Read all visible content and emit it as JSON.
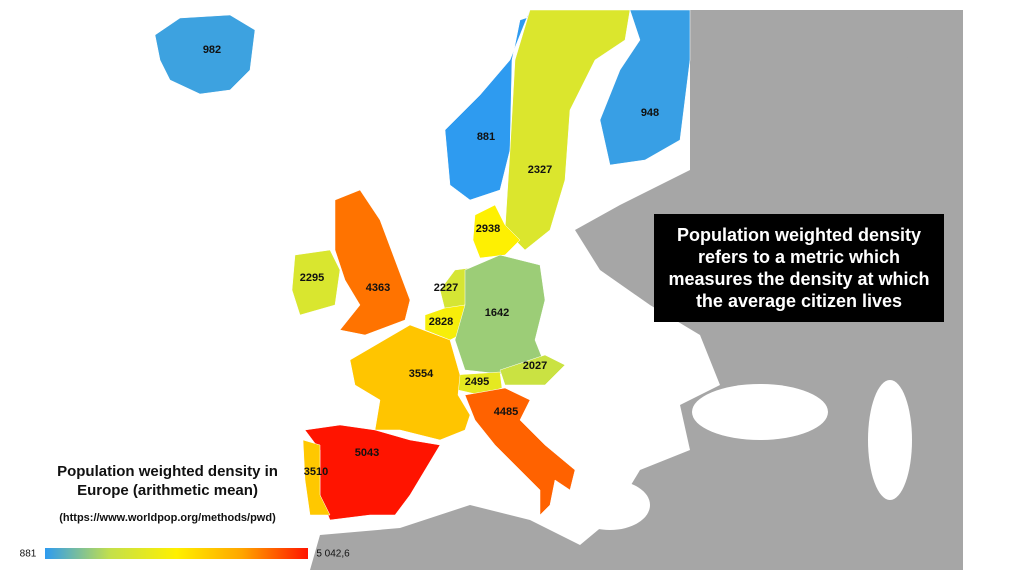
{
  "map": {
    "title": "Population weighted density in Europe (arithmetic mean)",
    "source": "(https://www.worldpop.org/methods/pwd)",
    "annotation": "Population weighted density refers to a metric which measures the density at which the average citizen lives",
    "regions": [
      {
        "value": 982
      },
      {
        "value": 881
      },
      {
        "value": 2327
      },
      {
        "value": 948
      },
      {
        "value": 2938
      },
      {
        "value": 2295
      },
      {
        "value": 4363
      },
      {
        "value": 2227
      },
      {
        "value": 2828
      },
      {
        "value": 1642
      },
      {
        "value": 2027
      },
      {
        "value": 2495
      },
      {
        "value": 3554
      },
      {
        "value": 4485
      },
      {
        "value": 5043
      },
      {
        "value": 3510
      }
    ],
    "scale": {
      "min": 881,
      "max": {
        "value": 5042.6,
        "label": "5 042,6"
      },
      "colors": [
        "#2e9bf0",
        "#c4e04a",
        "#fff000",
        "#ffa500",
        "#ff1400"
      ]
    }
  }
}
